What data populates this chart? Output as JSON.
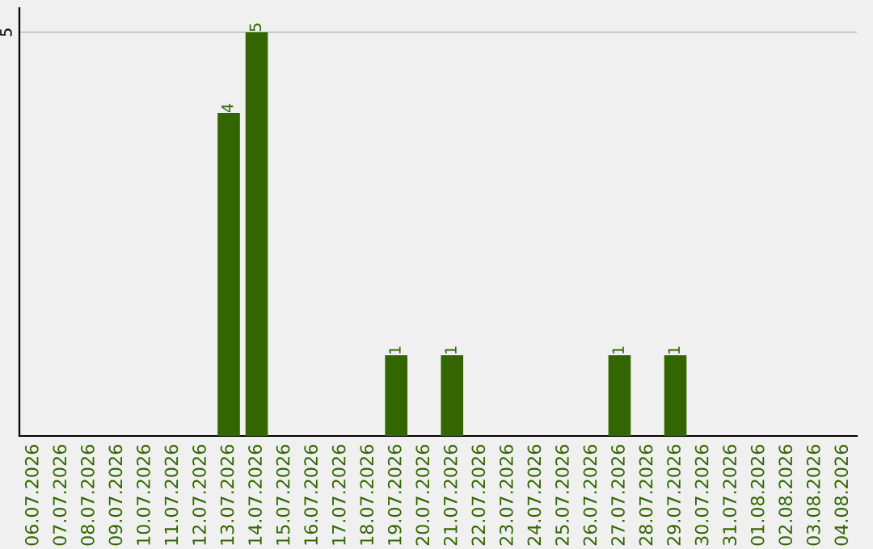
{
  "chart_data": {
    "type": "bar",
    "categories": [
      "06.07.2026",
      "07.07.2026",
      "08.07.2026",
      "09.07.2026",
      "10.07.2026",
      "11.07.2026",
      "12.07.2026",
      "13.07.2026",
      "14.07.2026",
      "15.07.2026",
      "16.07.2026",
      "17.07.2026",
      "18.07.2026",
      "19.07.2026",
      "20.07.2026",
      "21.07.2026",
      "22.07.2026",
      "23.07.2026",
      "24.07.2026",
      "25.07.2026",
      "26.07.2026",
      "27.07.2026",
      "28.07.2026",
      "29.07.2026",
      "30.07.2026",
      "31.07.2026",
      "01.08.2026",
      "02.08.2026",
      "03.08.2026",
      "04.08.2026"
    ],
    "values": [
      0,
      0,
      0,
      0,
      0,
      0,
      0,
      4,
      5,
      0,
      0,
      0,
      0,
      1,
      0,
      1,
      0,
      0,
      0,
      0,
      0,
      1,
      0,
      1,
      0,
      0,
      0,
      0,
      0,
      0
    ],
    "value_labels": [
      null,
      null,
      null,
      null,
      null,
      null,
      null,
      "4",
      "5",
      null,
      null,
      null,
      null,
      "1",
      null,
      "1",
      null,
      null,
      null,
      null,
      null,
      "1",
      null,
      "1",
      null,
      null,
      null,
      null,
      null,
      null
    ],
    "color": "#336600",
    "ylim": [
      0,
      5.3
    ],
    "yticks": [
      5
    ],
    "grid": "y"
  }
}
